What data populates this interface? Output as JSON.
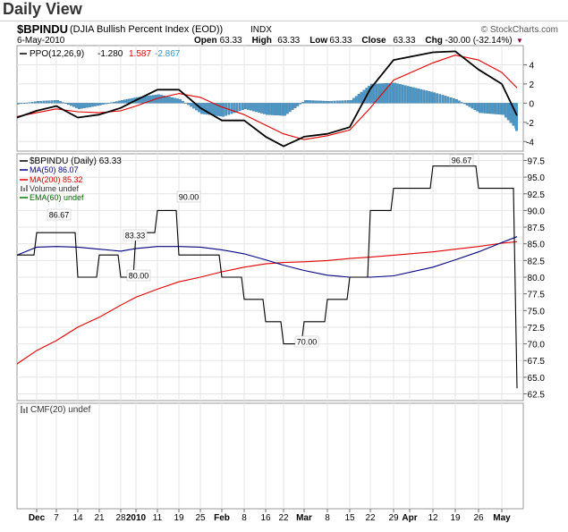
{
  "page_title": "Daily View",
  "header": {
    "symbol": "$BPINDU",
    "name": "(DJIA Bullish Percent Index (EOD))",
    "exchange": "INDX",
    "date": "6-May-2010",
    "watermark": "© StockCharts.com",
    "quote": [
      {
        "label": "Open",
        "value": "63.33"
      },
      {
        "label": "High",
        "value": "63.33"
      },
      {
        "label": "Low",
        "value": "63.33"
      },
      {
        "label": "Close",
        "value": "63.33"
      },
      {
        "label": "Chg",
        "value": "-30.00 (-32.14%)"
      }
    ],
    "down_marker": "▼"
  },
  "ppo_panel": {
    "legend_name": "PPO(12,26,9)",
    "legend_values": [
      "-1.280",
      "1.587",
      "-2.867"
    ],
    "colors": {
      "ppo": "#000000",
      "signal": "#e00000",
      "histogram_value": "#3399cc",
      "histogram": "#4a97c8"
    }
  },
  "price_panel": {
    "legend": [
      {
        "text": "$BPINDU (Daily) 63.33",
        "color": "#000000",
        "swatch": "#000000"
      },
      {
        "text": "MA(50) 86.07",
        "color": "#000080",
        "swatch": "#000080"
      },
      {
        "text": "MA(200) 85.32",
        "color": "#cc0000",
        "swatch": "#e00000"
      },
      {
        "text": "Volume undef",
        "color": "#333333",
        "swatch": "volume-icon"
      },
      {
        "text": "EMA(60) undef",
        "color": "#006600",
        "swatch": "#008000"
      }
    ],
    "annotations": [
      "86.67",
      "83.33",
      "80.00",
      "90.00",
      "70.00",
      "96.67"
    ]
  },
  "cmf_panel": {
    "legend": "CMF(20) undef",
    "swatch": "cmf-icon"
  },
  "x_axis": {
    "ticks": [
      {
        "label": "Dec",
        "bold": true
      },
      {
        "label": "7",
        "bold": false
      },
      {
        "label": "14",
        "bold": false
      },
      {
        "label": "21",
        "bold": false
      },
      {
        "label": "28",
        "bold": false
      },
      {
        "label": "2010",
        "bold": true
      },
      {
        "label": "11",
        "bold": false
      },
      {
        "label": "19",
        "bold": false
      },
      {
        "label": "25",
        "bold": false
      },
      {
        "label": "Feb",
        "bold": true
      },
      {
        "label": "8",
        "bold": false
      },
      {
        "label": "16",
        "bold": false
      },
      {
        "label": "22",
        "bold": false
      },
      {
        "label": "Mar",
        "bold": true
      },
      {
        "label": "8",
        "bold": false
      },
      {
        "label": "15",
        "bold": false
      },
      {
        "label": "22",
        "bold": false
      },
      {
        "label": "29",
        "bold": false
      },
      {
        "label": "Apr",
        "bold": true
      },
      {
        "label": "12",
        "bold": false
      },
      {
        "label": "19",
        "bold": false
      },
      {
        "label": "26",
        "bold": false
      },
      {
        "label": "May",
        "bold": true
      }
    ]
  },
  "chart_data": [
    {
      "type": "line",
      "panel": "PPO(12,26,9)",
      "ylim": [
        -5,
        6
      ],
      "yticks": [
        "4",
        "2",
        "0",
        "-2",
        "-4"
      ],
      "x": [
        "Nov 30",
        "Dec 7",
        "Dec 14",
        "Dec 21",
        "Dec 28",
        "Jan 4",
        "Jan 11",
        "Jan 19",
        "Jan 25",
        "Feb 1",
        "Feb 8",
        "Feb 16",
        "Feb 22",
        "Mar 1",
        "Mar 8",
        "Mar 15",
        "Mar 22",
        "Mar 29",
        "Apr 5",
        "Apr 12",
        "Apr 19",
        "Apr 26",
        "May 3",
        "May 6"
      ],
      "series": [
        {
          "values": [
            -1.5,
            -0.8,
            -0.3,
            -1.5,
            -1.2,
            -0.5,
            0.3,
            1.4,
            1.4,
            -0.5,
            -1.8,
            -1.8,
            -3.5,
            -4.5,
            -3.5,
            -3.2,
            -2.5,
            1.5,
            4.5,
            5.3,
            5.4,
            3.5,
            2.0,
            -1.3
          ],
          "color": "#000000"
        },
        {
          "values": [
            -1.4,
            -1.0,
            -0.6,
            -0.9,
            -1.0,
            -0.8,
            -0.3,
            0.5,
            1.0,
            0.6,
            -0.4,
            -1.2,
            -2.3,
            -3.2,
            -3.8,
            -3.4,
            -2.8,
            -0.5,
            2.4,
            4.2,
            5.0,
            4.5,
            3.2,
            1.6
          ],
          "color": "#e00000"
        },
        {
          "type": "bar",
          "values": [
            -0.1,
            0.2,
            0.3,
            -0.6,
            -0.2,
            0.3,
            0.6,
            0.9,
            0.4,
            -1.1,
            -1.4,
            -0.6,
            -1.2,
            -1.3,
            0.3,
            0.2,
            0.3,
            2.0,
            2.1,
            1.1,
            0.4,
            -1.0,
            -1.2,
            -2.9
          ],
          "color": "#4a97c8"
        }
      ]
    },
    {
      "type": "line",
      "panel": "$BPINDU (Daily)",
      "ylim": [
        61.5,
        98.5
      ],
      "yticks": [
        "97.5",
        "95.0",
        "92.5",
        "90.0",
        "87.5",
        "85.0",
        "82.5",
        "80.0",
        "77.5",
        "75.0",
        "72.5",
        "70.0",
        "67.5",
        "65.0",
        "62.5"
      ],
      "x": [
        "Nov 30",
        "Dec 7",
        "Dec 14",
        "Dec 21",
        "Dec 28",
        "Jan 4",
        "Jan 11",
        "Jan 19",
        "Jan 25",
        "Feb 1",
        "Feb 8",
        "Feb 16",
        "Feb 22",
        "Mar 1",
        "Mar 8",
        "Mar 15",
        "Mar 22",
        "Mar 29",
        "Apr 5",
        "Apr 12",
        "Apr 19",
        "Apr 26",
        "May 3",
        "May 6"
      ],
      "series": [
        {
          "name": "$BPINDU",
          "values": [
            83.33,
            86.67,
            86.67,
            80.0,
            83.33,
            80.0,
            86.67,
            90.0,
            83.33,
            83.33,
            80.0,
            76.67,
            73.33,
            70.0,
            73.33,
            76.67,
            80.0,
            90.0,
            93.33,
            96.67,
            96.67,
            93.33,
            93.33,
            63.33
          ],
          "color": "#000000"
        },
        {
          "name": "MA(50)",
          "values": [
            83.3,
            84.5,
            84.6,
            84.5,
            84.2,
            83.9,
            84.3,
            84.6,
            84.6,
            84.5,
            84.1,
            83.5,
            82.6,
            81.8,
            81.0,
            80.3,
            80.0,
            80.0,
            80.2,
            81.5,
            82.6,
            83.8,
            85.2,
            86.07
          ],
          "color": "#000080"
        },
        {
          "name": "MA(200)",
          "values": [
            67.0,
            69.0,
            70.5,
            72.5,
            74.0,
            75.8,
            77.0,
            78.2,
            79.3,
            80.0,
            80.8,
            81.5,
            82.0,
            82.2,
            82.3,
            82.5,
            82.8,
            83.0,
            83.3,
            83.8,
            84.2,
            84.6,
            85.1,
            85.32
          ],
          "color": "#e00000"
        }
      ]
    }
  ]
}
